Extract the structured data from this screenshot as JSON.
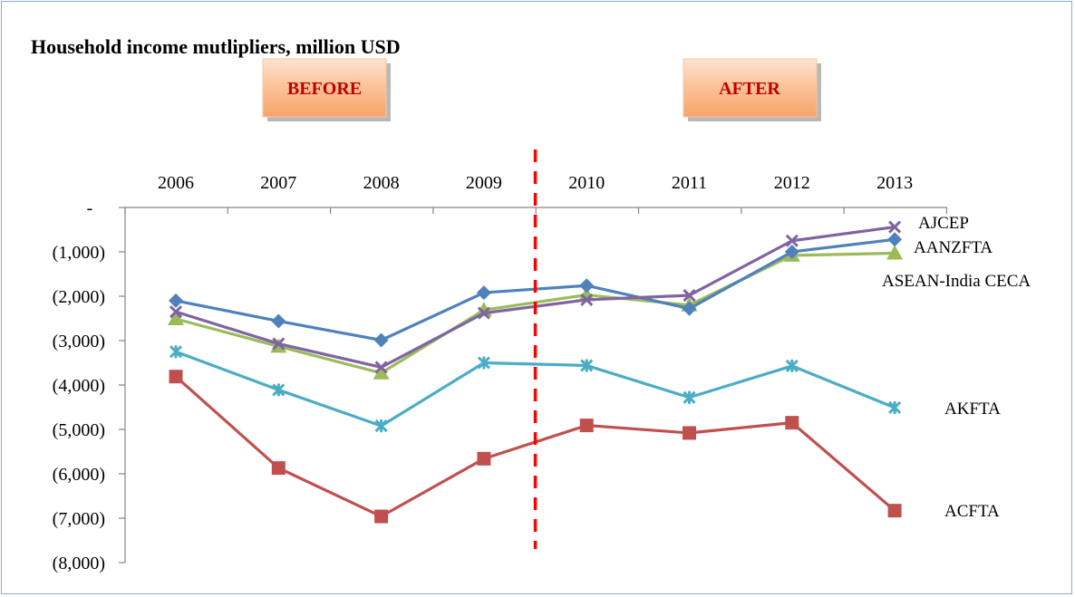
{
  "chart_data": {
    "type": "line",
    "title": "Household income mutlipliers, million USD",
    "annotations": {
      "before_label": "BEFORE",
      "after_label": "AFTER",
      "divider_between": [
        "2009",
        "2010"
      ]
    },
    "categories": [
      "2006",
      "2007",
      "2008",
      "2009",
      "2010",
      "2011",
      "2012",
      "2013"
    ],
    "ylim": [
      -8000,
      0
    ],
    "yticks": [
      0,
      -1000,
      -2000,
      -3000,
      -4000,
      -5000,
      -6000,
      -7000,
      -8000
    ],
    "ytick_labels": [
      "-",
      "(1,000)",
      "(2,000)",
      "(3,000)",
      "(4,000)",
      "(5,000)",
      "(6,000)",
      "(7,000)",
      "(8,000)"
    ],
    "grid": false,
    "legend": "labels at line ends",
    "series": [
      {
        "name": "AJCEP",
        "color": "#8064a2",
        "marker": "x",
        "values": [
          -2350,
          -3070,
          -3600,
          -2380,
          -2080,
          -1980,
          -750,
          -440
        ]
      },
      {
        "name": "AANZFTA",
        "color": "#4f81bd",
        "marker": "diamond",
        "values": [
          -2100,
          -2560,
          -2990,
          -1920,
          -1760,
          -2280,
          -1000,
          -720
        ]
      },
      {
        "name": "ASEAN-India CECA",
        "color": "#9bbb59",
        "marker": "triangle",
        "values": [
          -2510,
          -3130,
          -3730,
          -2310,
          -1970,
          -2200,
          -1080,
          -1030
        ]
      },
      {
        "name": "AKFTA",
        "color": "#4bacc6",
        "marker": "star",
        "values": [
          -3250,
          -4110,
          -4920,
          -3500,
          -3560,
          -4280,
          -3570,
          -4510
        ]
      },
      {
        "name": "ACFTA",
        "color": "#c0504d",
        "marker": "square",
        "values": [
          -3810,
          -5870,
          -6960,
          -5660,
          -4910,
          -5080,
          -4850,
          -6830
        ]
      }
    ]
  }
}
